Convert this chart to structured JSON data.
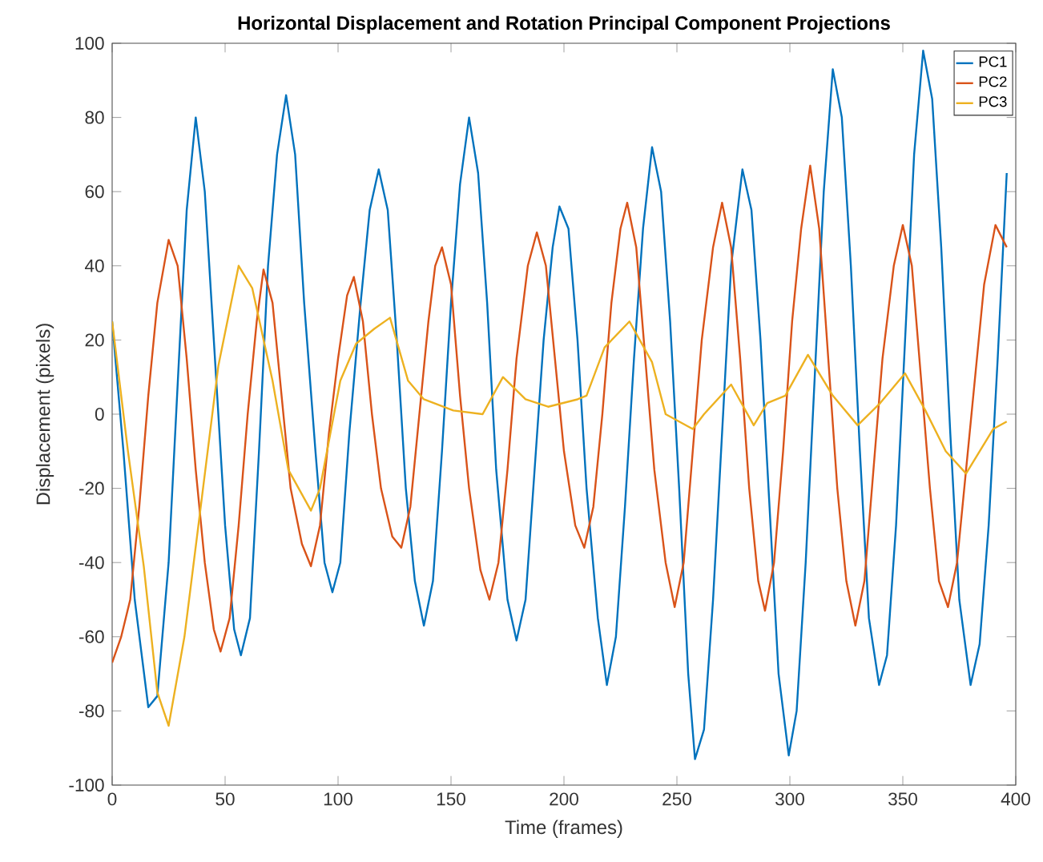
{
  "chart_data": {
    "type": "line",
    "title": "Horizontal Displacement and Rotation Principal Component Projections",
    "xlabel": "Time (frames)",
    "ylabel": "Displacement (pixels)",
    "xlim": [
      0,
      400
    ],
    "ylim": [
      -100,
      100
    ],
    "xticks": [
      0,
      50,
      100,
      150,
      200,
      250,
      300,
      350,
      400
    ],
    "yticks": [
      -100,
      -80,
      -60,
      -40,
      -20,
      0,
      20,
      40,
      60,
      80,
      100
    ],
    "grid": false,
    "legend": "top right",
    "marker": "none",
    "line_style": "solid",
    "series": [
      {
        "name": "PC1",
        "color": "#0072bd",
        "x": [
          0,
          5,
          10,
          16,
          20,
          25,
          30,
          33,
          37,
          41,
          45,
          50,
          54,
          57,
          61,
          65,
          69,
          73,
          77,
          81,
          85,
          90,
          94,
          97.5,
          101,
          105,
          110,
          114,
          118,
          122,
          126,
          130,
          134,
          138,
          142,
          146,
          150,
          154,
          158,
          162,
          166,
          170,
          175,
          179,
          183,
          187,
          191,
          195,
          198,
          202,
          206,
          210,
          215,
          219,
          223,
          227,
          231,
          235,
          239,
          243,
          247,
          251,
          255,
          258,
          262,
          266,
          270,
          274,
          279,
          283,
          287,
          291,
          295,
          299.5,
          303,
          307,
          311,
          315,
          319,
          323,
          327,
          331,
          335,
          339.5,
          343,
          347,
          351,
          355,
          359,
          363,
          367,
          371,
          375,
          380,
          384,
          388,
          392,
          396
        ],
        "values": [
          25,
          -10,
          -50,
          -79,
          -76,
          -40,
          20,
          55,
          80,
          60,
          20,
          -30,
          -58,
          -65,
          -55,
          -10,
          40,
          70,
          86,
          70,
          30,
          -10,
          -40,
          -48,
          -40,
          -5,
          30,
          55,
          66,
          55,
          20,
          -20,
          -45,
          -57,
          -45,
          -10,
          30,
          62,
          80,
          65,
          30,
          -15,
          -50,
          -61,
          -50,
          -15,
          20,
          45,
          56,
          50,
          20,
          -20,
          -55,
          -73,
          -60,
          -25,
          15,
          50,
          72,
          60,
          25,
          -20,
          -70,
          -93,
          -85,
          -50,
          -5,
          40,
          66,
          55,
          20,
          -25,
          -70,
          -92,
          -80,
          -40,
          10,
          60,
          93,
          80,
          40,
          -10,
          -55,
          -73,
          -65,
          -30,
          20,
          70,
          98,
          85,
          45,
          -5,
          -50,
          -73,
          -62,
          -30,
          15,
          65
        ]
      },
      {
        "name": "PC2",
        "color": "#d95319",
        "x": [
          0,
          4,
          8,
          12,
          16,
          20,
          25,
          29,
          33,
          37,
          41,
          45,
          48,
          52,
          56,
          60,
          64,
          67,
          71,
          75,
          79,
          84,
          88,
          92,
          96,
          100,
          104,
          107,
          111,
          115,
          119,
          124,
          128,
          132,
          136,
          140,
          143,
          146,
          150,
          154,
          158,
          163,
          167,
          171,
          175,
          179,
          184,
          188,
          192,
          196,
          200,
          205,
          209,
          213,
          217,
          221,
          225,
          228,
          232,
          236,
          240,
          245,
          249,
          253,
          257,
          261,
          266,
          270,
          274,
          278,
          282,
          286,
          289,
          293,
          297,
          301,
          305,
          309,
          313,
          317,
          321,
          325,
          329,
          333,
          337,
          341,
          346,
          350,
          354,
          358,
          362,
          366,
          370,
          374,
          378,
          382,
          386,
          391,
          396
        ],
        "values": [
          -67,
          -60,
          -50,
          -25,
          5,
          30,
          47,
          40,
          15,
          -15,
          -40,
          -58,
          -64,
          -55,
          -30,
          0,
          25,
          39,
          30,
          5,
          -20,
          -35,
          -41,
          -30,
          -5,
          15,
          32,
          37,
          25,
          0,
          -20,
          -33,
          -36,
          -25,
          0,
          25,
          40,
          45,
          35,
          5,
          -20,
          -42,
          -50,
          -40,
          -15,
          15,
          40,
          49,
          40,
          15,
          -10,
          -30,
          -36,
          -25,
          0,
          30,
          50,
          57,
          45,
          15,
          -15,
          -40,
          -52,
          -40,
          -10,
          20,
          45,
          57,
          45,
          15,
          -20,
          -45,
          -53,
          -40,
          -10,
          25,
          50,
          67,
          50,
          15,
          -20,
          -45,
          -57,
          -45,
          -15,
          15,
          40,
          51,
          40,
          10,
          -20,
          -45,
          -52,
          -40,
          -15,
          10,
          35,
          51,
          45
        ]
      },
      {
        "name": "PC3",
        "color": "#edb120",
        "x": [
          0,
          7,
          14,
          20,
          25,
          32,
          39,
          47,
          56,
          62,
          71,
          78,
          88,
          92,
          101,
          108,
          116,
          123,
          131,
          138,
          151,
          164,
          173,
          183,
          193,
          206,
          210,
          218,
          229,
          239,
          245,
          257,
          262,
          274,
          284,
          290,
          298,
          308,
          319,
          330,
          340,
          351,
          360,
          369,
          378,
          390,
          396
        ],
        "values": [
          25,
          -10,
          -41,
          -75,
          -84,
          -60,
          -26,
          13,
          40,
          34,
          9,
          -15,
          -26,
          -20,
          9,
          19,
          23,
          26,
          9,
          4,
          1,
          0,
          10,
          4,
          2,
          4,
          5,
          18,
          25,
          14,
          0,
          -4,
          0,
          8,
          -3,
          3,
          5,
          16,
          5,
          -3,
          3,
          11,
          1,
          -10,
          -16,
          -4,
          -2
        ]
      }
    ]
  }
}
